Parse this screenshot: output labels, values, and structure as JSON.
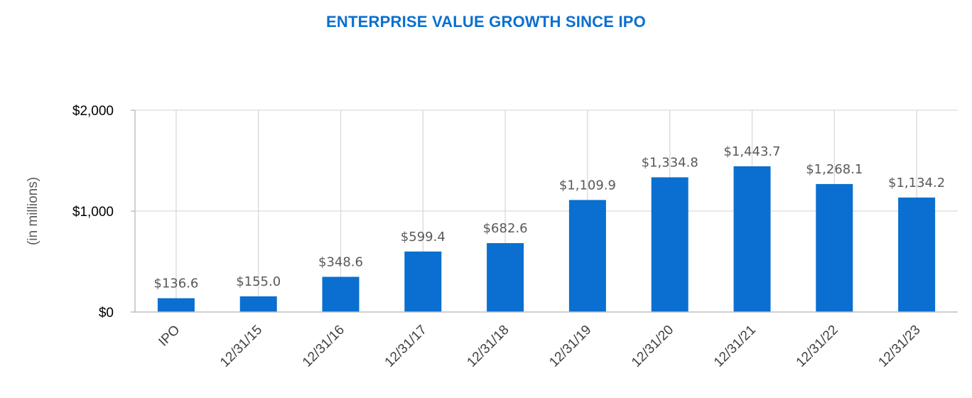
{
  "chart_data": {
    "type": "bar",
    "title": "ENTERPRISE VALUE GROWTH SINCE IPO",
    "ylabel": "(in millions)",
    "xlabel": "",
    "ylim": [
      0,
      2000
    ],
    "yticks": [
      {
        "value": 0,
        "label": "$0"
      },
      {
        "value": 1000,
        "label": "$1,000"
      },
      {
        "value": 2000,
        "label": "$2,000"
      }
    ],
    "categories": [
      "IPO",
      "12/31/15",
      "12/31/16",
      "12/31/17",
      "12/31/18",
      "12/31/19",
      "12/31/20",
      "12/31/21",
      "12/31/22",
      "12/31/23"
    ],
    "values": [
      136.6,
      155.0,
      348.6,
      599.4,
      682.6,
      1109.9,
      1334.8,
      1443.7,
      1268.1,
      1134.2
    ],
    "data_labels": [
      "$136.6",
      "$155.0",
      "$348.6",
      "$599.4",
      "$682.6",
      "$1,109.9",
      "$1,334.8",
      "$1,443.7",
      "$1,268.1",
      "$1,134.2"
    ],
    "grid": true,
    "legend": "none",
    "colors": {
      "bar": "#0a6fd0",
      "title": "#0a6fd0",
      "grid": "#d9d9d9",
      "axis": "#bfbfbf"
    }
  }
}
